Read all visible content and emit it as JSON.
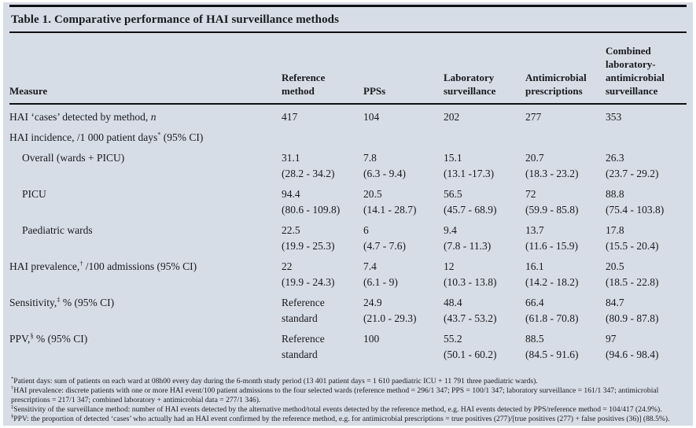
{
  "colors": {
    "panel_background": "#d7dde6",
    "rule": "#101114",
    "text": "#191a1e"
  },
  "table": {
    "title": "Table 1. Comparative performance of HAI surveillance methods",
    "columns": [
      "Measure",
      "Reference method",
      "PPSs",
      "Laboratory surveillance",
      "Antimicrobial prescriptions",
      "Combined laboratory-antimicrobial surveillance"
    ],
    "rows": [
      {
        "label_pre": "HAI ‘cases’ detected by method, ",
        "label_italic": "n",
        "values": [
          {
            "main": "417"
          },
          {
            "main": "104"
          },
          {
            "main": "202"
          },
          {
            "main": "277"
          },
          {
            "main": "353"
          }
        ]
      },
      {
        "label_pre": "HAI incidence, /1 000 patient days",
        "label_sup": "*",
        "label_post": " (95% CI)",
        "values": []
      },
      {
        "label_pre": "Overall (wards + PICU)",
        "indent": true,
        "values": [
          {
            "main": "31.1",
            "ci": "(28.2 - 34.2)"
          },
          {
            "main": "7.8",
            "ci": "(6.3 - 9.4)"
          },
          {
            "main": "15.1",
            "ci": "(13.1 -17.3)"
          },
          {
            "main": "20.7",
            "ci": "(18.3 - 23.2)"
          },
          {
            "main": "26.3",
            "ci": "(23.7 - 29.2)"
          }
        ]
      },
      {
        "label_pre": "PICU",
        "indent": true,
        "values": [
          {
            "main": "94.4",
            "ci": "(80.6 - 109.8)"
          },
          {
            "main": "20.5",
            "ci": "(14.1 - 28.7)"
          },
          {
            "main": "56.5",
            "ci": "(45.7 - 68.9)"
          },
          {
            "main": "72",
            "ci": "(59.9 - 85.8)"
          },
          {
            "main": "88.8",
            "ci": "(75.4 - 103.8)"
          }
        ]
      },
      {
        "label_pre": "Paediatric wards",
        "indent": true,
        "values": [
          {
            "main": "22.5",
            "ci": "(19.9 - 25.3)"
          },
          {
            "main": "6",
            "ci": "(4.7 - 7.6)"
          },
          {
            "main": "9.4",
            "ci": "(7.8 - 11.3)"
          },
          {
            "main": "13.7",
            "ci": "(11.6 - 15.9)"
          },
          {
            "main": "17.8",
            "ci": "(15.5 - 20.4)"
          }
        ]
      },
      {
        "label_pre": "HAI prevalence,",
        "label_sup": "†",
        "label_post": " /100 admissions (95% CI)",
        "values": [
          {
            "main": "22",
            "ci": "(19.9 - 24.3)"
          },
          {
            "main": "7.4",
            "ci": "(6.1 - 9)"
          },
          {
            "main": "12",
            "ci": "(10.3 - 13.8)"
          },
          {
            "main": "16.1",
            "ci": "(14.2 - 18.2)"
          },
          {
            "main": "20.5",
            "ci": "(18.5 - 22.8)"
          }
        ]
      },
      {
        "label_pre": "Sensitivity,",
        "label_sup": "‡",
        "label_post": " % (95% CI)",
        "values": [
          {
            "main": "Reference",
            "ci": "standard"
          },
          {
            "main": "24.9",
            "ci": "(21.0 - 29.3)"
          },
          {
            "main": "48.4",
            "ci": "(43.7 - 53.2)"
          },
          {
            "main": "66.4",
            "ci": "(61.8 - 70.8)"
          },
          {
            "main": "84.7",
            "ci": "(80.9 - 87.8)"
          }
        ]
      },
      {
        "label_pre": "PPV,",
        "label_sup": "§",
        "label_post": " % (95% CI)",
        "values": [
          {
            "main": "Reference",
            "ci": "standard"
          },
          {
            "main": "100"
          },
          {
            "main": "55.2",
            "ci": "(50.1 - 60.2)"
          },
          {
            "main": "88.5",
            "ci": "(84.5 - 91.6)"
          },
          {
            "main": "97",
            "ci": "(94.6 - 98.4)"
          }
        ]
      }
    ]
  },
  "footnotes": [
    {
      "sup": "*",
      "text": "Patient days: sum of patients on each ward at 08h00 every day during the 6-month study period (13 401 patient days = 1 610 paediatric ICU + 11 791 three paediatric wards)."
    },
    {
      "sup": "†",
      "text": "HAI prevalence: discrete patients with one or more HAI event/100 patient admissions to the four selected wards (reference method = 296/1 347; PPS = 100/1 347; laboratory surveillance = 161/1 347; antimicrobial prescriptions = 217/1 347; combined laboratory + antimicrobial data = 277/1 346)."
    },
    {
      "sup": "‡",
      "text": "Sensitivity of the surveillance method: number of HAI events detected by the alternative method/total events detected by the reference method, e.g. HAI events detected by PPS/reference method = 104/417 (24.9%)."
    },
    {
      "sup": "§",
      "text": "PPV: the proportion of detected ‘cases’ who actually had an HAI event confirmed by the reference method, e.g. for antimicrobial prescriptions = true positives (277)/[true positives (277) + false positives (36)] (88.5%)."
    }
  ]
}
